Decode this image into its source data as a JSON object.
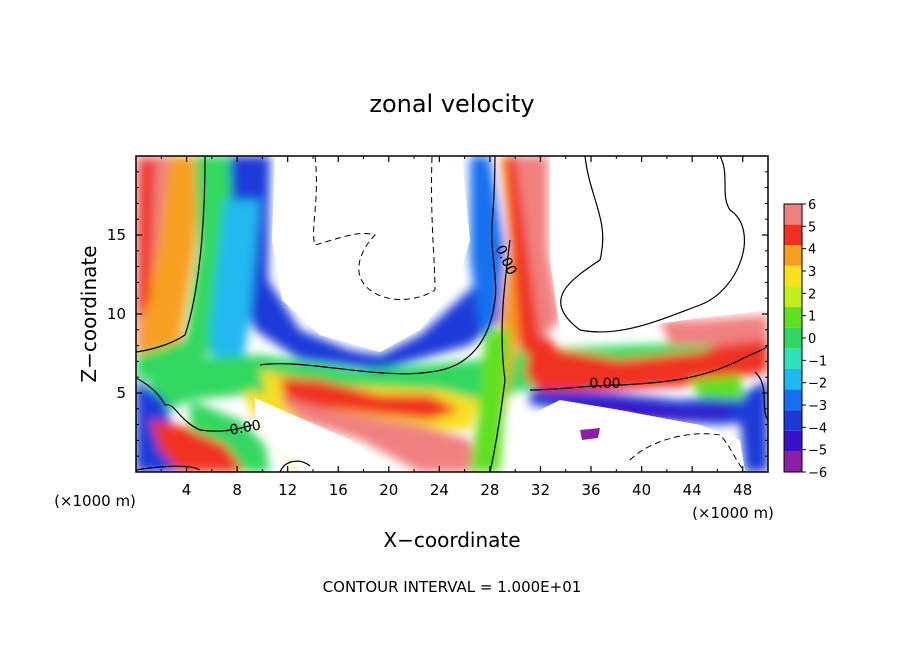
{
  "chart_data": {
    "type": "heatmap",
    "title": "zonal velocity",
    "xlabel": "X−coordinate",
    "ylabel": "Z−coordinate",
    "x_unit_left": "(×1000 m)",
    "x_unit_right": "(×1000 m)",
    "footnote": "CONTOUR INTERVAL = 1.000E+01",
    "xlim": [
      0,
      50
    ],
    "ylim": [
      0,
      20
    ],
    "x_ticks": [
      4,
      8,
      12,
      16,
      20,
      24,
      28,
      32,
      36,
      40,
      44,
      48
    ],
    "x_tick_labels": [
      "4",
      "8",
      "12",
      "16",
      "20",
      "24",
      "28",
      "32",
      "36",
      "40",
      "44",
      "48"
    ],
    "y_ticks": [
      5,
      10,
      15
    ],
    "y_tick_labels": [
      "5",
      "10",
      "15"
    ],
    "contour_labels": [
      {
        "text": "0.00",
        "x": 8.7,
        "y": 2.8,
        "angle": -10
      },
      {
        "text": "0.00",
        "x": 29.0,
        "y": 13.4,
        "angle": 65
      },
      {
        "text": "0.00",
        "x": 37.8,
        "y": 5.6,
        "angle": 0
      }
    ],
    "colorbar": {
      "levels": [
        -6,
        -5,
        -4,
        -3,
        -2,
        -1,
        0,
        1,
        2,
        3,
        4,
        5,
        6
      ],
      "labels": [
        "6",
        "5",
        "4",
        "3",
        "2",
        "1",
        "0",
        "−1",
        "−2",
        "−3",
        "−4",
        "−5",
        "−6"
      ],
      "colors": [
        "#8a1fa8",
        "#3a10c8",
        "#1a3ad8",
        "#1870f0",
        "#20b8f0",
        "#30e0b8",
        "#30d860",
        "#60e020",
        "#c0f020",
        "#f8e020",
        "#f8a020",
        "#f03020",
        "#f08080"
      ]
    }
  }
}
